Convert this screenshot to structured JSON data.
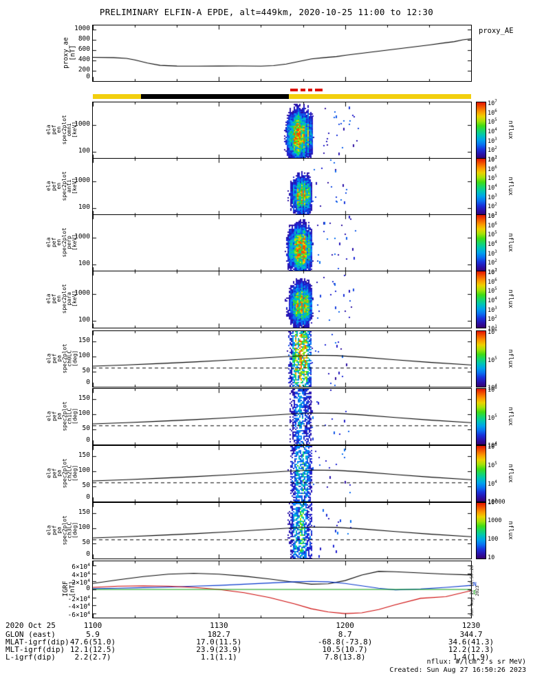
{
  "title": "PRELIMINARY ELFIN-A EPDE, alt=449km, 2020-10-25 11:00 to 12:30",
  "proxy_legend": "proxy_AE",
  "footer": {
    "units": "nflux: #/(cm^2 s sr MeV)",
    "created": "Created: Sun Aug 27 16:50:26 2023",
    "created_vertical": "Sun Aug 27 16:50:26 2023"
  },
  "x_axis": {
    "start_label": "1100",
    "span_min": 90,
    "minor_step_min": 10,
    "major_ticks_min": [
      0,
      30,
      60,
      90
    ],
    "tick_labels": [
      "1100",
      "1130",
      "1200",
      "1230"
    ]
  },
  "ephemeris": {
    "rows": [
      {
        "label": "2020 Oct 25",
        "values": [
          "1100",
          "1130",
          "1200",
          "1230"
        ]
      },
      {
        "label": "GLON (east)",
        "values": [
          "5.9",
          "182.7",
          "8.7",
          "344.7"
        ]
      },
      {
        "label": "MLAT-igrf(dip)",
        "values": [
          "47.6(51.0)",
          "17.0(11.5)",
          "-68.8(-73.8)",
          "34.6(41.3)"
        ]
      },
      {
        "label": "MLT-igrf(dip)",
        "values": [
          "12.1(12.5)",
          "23.9(23.9)",
          "10.5(10.7)",
          "12.2(12.3)"
        ]
      },
      {
        "label": "L-igrf(dip)",
        "values": [
          "2.2(2.7)",
          "1.1(1.1)",
          "7.8(13.8)",
          "1.4(1.9)"
        ]
      }
    ]
  },
  "flag_bar": {
    "bar_color": "#f2cf0e",
    "black_segment_min": [
      11.5,
      46.6
    ],
    "dash_color": "#dd1100",
    "dash_segments_min": [
      [
        47.0,
        48.8
      ],
      [
        49.4,
        50.6
      ],
      [
        51.2,
        52.2
      ],
      [
        52.8,
        54.6
      ]
    ]
  },
  "chart_data": [
    {
      "id": "proxy_ae",
      "type": "line",
      "ylabel_lines": [
        "proxy_ae",
        "[nT]"
      ],
      "ylim": [
        0,
        1080
      ],
      "yticks": [
        {
          "v": 0,
          "label": "0"
        },
        {
          "v": 200,
          "label": "200"
        },
        {
          "v": 400,
          "label": "400"
        },
        {
          "v": 600,
          "label": "600"
        },
        {
          "v": 800,
          "label": "800"
        },
        {
          "v": 1000,
          "label": "1000"
        }
      ],
      "line_color": "#000000",
      "x_min": [
        0,
        5,
        8,
        10,
        13,
        16,
        20,
        25,
        30,
        35,
        40,
        43,
        46,
        49,
        52,
        55,
        58,
        60,
        64,
        68,
        72,
        76,
        80,
        84,
        86,
        88,
        90
      ],
      "values": [
        460,
        455,
        440,
        410,
        350,
        305,
        292,
        290,
        292,
        294,
        290,
        300,
        330,
        380,
        430,
        455,
        475,
        500,
        540,
        580,
        620,
        660,
        700,
        745,
        765,
        800,
        820
      ]
    },
    {
      "id": "en_omni",
      "type": "spectrogram",
      "scale": "log",
      "ylabel_lines": [
        "ela",
        "pef",
        "en",
        "spec2plot",
        "omni",
        "[keV]"
      ],
      "ylim": [
        55,
        6800
      ],
      "yticks": [
        {
          "v": 100,
          "label": "100"
        },
        {
          "v": 1000,
          "label": "1000"
        }
      ],
      "colorbar": {
        "label": "nflux",
        "ticks": [
          "10^7",
          "10^6",
          "10^5",
          "10^4",
          "10^3",
          "10^2",
          "10^1"
        ]
      },
      "burst": {
        "center": 49.3,
        "width": 2.4,
        "tail": 57,
        "efrac": 0.58,
        "ewidth": 0.24,
        "amp": 1.05,
        "seed": 11,
        "specks": 26
      }
    },
    {
      "id": "en_anti",
      "type": "spectrogram",
      "scale": "log",
      "ylabel_lines": [
        "ela",
        "pef",
        "en",
        "spec2plot",
        "anti",
        "[keV]"
      ],
      "ylim": [
        55,
        6800
      ],
      "yticks": [
        {
          "v": 100,
          "label": "100"
        },
        {
          "v": 1000,
          "label": "1000"
        }
      ],
      "colorbar": {
        "label": "nflux",
        "ticks": [
          "10^7",
          "10^6",
          "10^5",
          "10^4",
          "10^3",
          "10^2",
          "10^1"
        ]
      },
      "burst": {
        "center": 49.6,
        "width": 2.0,
        "tail": 56,
        "efrac": 0.64,
        "ewidth": 0.19,
        "amp": 0.9,
        "seed": 23,
        "specks": 20
      }
    },
    {
      "id": "en_perp",
      "type": "spectrogram",
      "scale": "log",
      "ylabel_lines": [
        "ela",
        "pef",
        "en",
        "spec2plot",
        "perp",
        "[keV]"
      ],
      "ylim": [
        55,
        6800
      ],
      "yticks": [
        {
          "v": 100,
          "label": "100"
        },
        {
          "v": 1000,
          "label": "1000"
        }
      ],
      "colorbar": {
        "label": "nflux",
        "ticks": [
          "10^7",
          "10^6",
          "10^5",
          "10^4",
          "10^3",
          "10^2",
          "10^1"
        ]
      },
      "burst": {
        "center": 49.3,
        "width": 2.3,
        "tail": 57,
        "efrac": 0.6,
        "ewidth": 0.23,
        "amp": 1.0,
        "seed": 37,
        "specks": 24
      }
    },
    {
      "id": "en_para",
      "type": "spectrogram",
      "scale": "log",
      "ylabel_lines": [
        "ela",
        "pef",
        "en",
        "spec2plot",
        "para",
        "[keV]"
      ],
      "ylim": [
        55,
        6800
      ],
      "yticks": [
        {
          "v": 100,
          "label": "100"
        },
        {
          "v": 1000,
          "label": "1000"
        }
      ],
      "colorbar": {
        "label": "nflux",
        "ticks": [
          "10^7",
          "10^6",
          "10^5",
          "10^4",
          "10^3",
          "10^2",
          "10^1"
        ]
      },
      "burst": {
        "center": 49.4,
        "width": 2.2,
        "tail": 57,
        "efrac": 0.58,
        "ewidth": 0.21,
        "amp": 0.95,
        "seed": 51,
        "specks": 22
      }
    },
    {
      "id": "pa_ch0",
      "type": "pa",
      "ylabel_lines": [
        "ela",
        "pef",
        "pa",
        "spec2plot",
        "ch0LC",
        "[deg]"
      ],
      "ylim": [
        0,
        184
      ],
      "yticks": [
        {
          "v": 0,
          "label": "0"
        },
        {
          "v": 50,
          "label": "50"
        },
        {
          "v": 100,
          "label": "100"
        },
        {
          "v": 150,
          "label": "150"
        }
      ],
      "colorbar": {
        "label": "nflux",
        "ticks": [
          "10^6",
          "10^5",
          "10^4"
        ]
      },
      "losscone": {
        "x_min": [
          0,
          8,
          16,
          24,
          32,
          40,
          46,
          52,
          58,
          64,
          72,
          80,
          90
        ],
        "y": [
          68,
          72,
          77,
          82,
          88,
          95,
          100,
          104,
          103,
          98,
          89,
          81,
          72
        ]
      },
      "dashed_y": 62,
      "burst": {
        "center": 49.4,
        "width": 2.0,
        "tail": 55,
        "efrac": 0.42,
        "ewidth": 0.55,
        "amp": 1.0,
        "seed": 63,
        "patchy": 0.3,
        "specks": 18
      }
    },
    {
      "id": "pa_ch1",
      "type": "pa",
      "ylabel_lines": [
        "ela",
        "pef",
        "pa",
        "spec2plot",
        "ch1LC",
        "[deg]"
      ],
      "ylim": [
        0,
        184
      ],
      "yticks": [
        {
          "v": 0,
          "label": "0"
        },
        {
          "v": 50,
          "label": "50"
        },
        {
          "v": 100,
          "label": "100"
        },
        {
          "v": 150,
          "label": "150"
        }
      ],
      "colorbar": {
        "label": "nflux",
        "ticks": [
          "10^6",
          "10^5",
          "10^4"
        ]
      },
      "losscone": {
        "x_min": [
          0,
          8,
          16,
          24,
          32,
          40,
          46,
          52,
          58,
          64,
          72,
          80,
          90
        ],
        "y": [
          68,
          72,
          77,
          82,
          88,
          95,
          100,
          104,
          103,
          98,
          89,
          81,
          72
        ]
      },
      "dashed_y": 62,
      "burst": {
        "center": 49.4,
        "width": 2.0,
        "tail": 56,
        "efrac": 0.45,
        "ewidth": 0.6,
        "amp": 0.38,
        "seed": 77,
        "patchy": 0.35,
        "specks": 16
      }
    },
    {
      "id": "pa_ch2",
      "type": "pa",
      "ylabel_lines": [
        "ela",
        "pef",
        "pa",
        "spec2plot",
        "ch2LC",
        "[deg]"
      ],
      "ylim": [
        0,
        184
      ],
      "yticks": [
        {
          "v": 0,
          "label": "0"
        },
        {
          "v": 50,
          "label": "50"
        },
        {
          "v": 100,
          "label": "100"
        },
        {
          "v": 150,
          "label": "150"
        }
      ],
      "colorbar": {
        "label": "nflux",
        "ticks": [
          "10^6",
          "10^5",
          "10^4",
          "10^3"
        ]
      },
      "losscone": {
        "x_min": [
          0,
          8,
          16,
          24,
          32,
          40,
          46,
          52,
          58,
          64,
          72,
          80,
          90
        ],
        "y": [
          68,
          72,
          77,
          82,
          88,
          95,
          100,
          104,
          103,
          98,
          89,
          81,
          72
        ]
      },
      "dashed_y": 62,
      "burst": {
        "center": 49.4,
        "width": 2.1,
        "tail": 56,
        "efrac": 0.45,
        "ewidth": 0.6,
        "amp": 0.45,
        "seed": 91,
        "patchy": 0.35,
        "specks": 16
      }
    },
    {
      "id": "pa_ch3",
      "type": "pa",
      "ylabel_lines": [
        "ela",
        "pef",
        "pa",
        "spec2plot",
        "ch3LC",
        "[deg]"
      ],
      "ylim": [
        0,
        184
      ],
      "yticks": [
        {
          "v": 0,
          "label": "0"
        },
        {
          "v": 50,
          "label": "50"
        },
        {
          "v": 100,
          "label": "100"
        },
        {
          "v": 150,
          "label": "150"
        }
      ],
      "colorbar": {
        "label": "nflux",
        "ticks": [
          "10000",
          "1000",
          "100",
          "10"
        ]
      },
      "losscone": {
        "x_min": [
          0,
          8,
          16,
          24,
          32,
          40,
          46,
          52,
          58,
          64,
          72,
          80,
          90
        ],
        "y": [
          68,
          72,
          77,
          82,
          88,
          95,
          100,
          104,
          103,
          98,
          89,
          81,
          72
        ]
      },
      "dashed_y": 62,
      "burst": {
        "center": 49.4,
        "width": 2.1,
        "tail": 56,
        "efrac": 0.45,
        "ewidth": 0.6,
        "amp": 0.5,
        "seed": 105,
        "patchy": 0.35,
        "specks": 16
      }
    },
    {
      "id": "igrf",
      "type": "multiline",
      "ylabel_lines": [
        "IGRF",
        "[nT]"
      ],
      "ylim": [
        -70000,
        70000
      ],
      "yticks": [
        {
          "v": 60000,
          "label": "6×10^4"
        },
        {
          "v": 40000,
          "label": "4×10^4"
        },
        {
          "v": 20000,
          "label": "2×10^4"
        },
        {
          "v": 0,
          "label": "0"
        },
        {
          "v": -20000,
          "label": "-2×10^4"
        },
        {
          "v": -40000,
          "label": "-4×10^4"
        },
        {
          "v": -60000,
          "label": "-6×10^4"
        }
      ],
      "series": [
        {
          "name": "B-black",
          "color": "#000000",
          "x_min": [
            0,
            6,
            12,
            18,
            24,
            30,
            36,
            42,
            48,
            52,
            56,
            60,
            64,
            68,
            72,
            78,
            84,
            90
          ],
          "values": [
            15000,
            24000,
            32000,
            38000,
            40000,
            38000,
            33000,
            26000,
            18000,
            13000,
            14000,
            22000,
            36000,
            45000,
            44000,
            41000,
            38000,
            36000
          ]
        },
        {
          "name": "B-blue",
          "color": "#0033cc",
          "x_min": [
            0,
            6,
            12,
            18,
            24,
            30,
            36,
            42,
            48,
            52,
            56,
            60,
            64,
            68,
            72,
            78,
            84,
            90
          ],
          "values": [
            2000,
            3000,
            4500,
            6000,
            8000,
            10000,
            13000,
            16000,
            19000,
            20000,
            19000,
            15000,
            9000,
            3000,
            -1000,
            1000,
            5000,
            10000
          ]
        },
        {
          "name": "B-red",
          "color": "#cc0000",
          "x_min": [
            0,
            6,
            12,
            18,
            24,
            30,
            36,
            42,
            48,
            52,
            56,
            60,
            64,
            68,
            72,
            78,
            84,
            90
          ],
          "values": [
            5000,
            8000,
            9000,
            8000,
            5000,
            0,
            -8000,
            -20000,
            -36000,
            -48000,
            -56000,
            -60000,
            -58000,
            -50000,
            -38000,
            -22000,
            -18000,
            -3000
          ]
        },
        {
          "name": "E-green",
          "color": "#009900",
          "x_min": [
            0,
            90
          ],
          "values": [
            0,
            0
          ]
        }
      ],
      "side_labels": [
        {
          "text": "N",
          "color": "#0033cc",
          "fy": 0.42
        },
        {
          "text": "E",
          "color": "#009900",
          "fy": 0.56
        }
      ]
    }
  ]
}
